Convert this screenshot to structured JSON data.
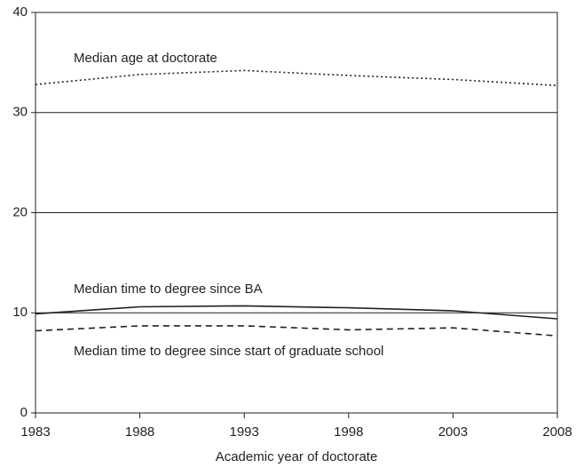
{
  "chart_data": {
    "type": "line",
    "x_label": "Academic year of doctorate",
    "x": [
      1983,
      1988,
      1993,
      1998,
      2003,
      2008
    ],
    "xlim": [
      1983,
      2008
    ],
    "xticks": [
      1983,
      1988,
      1993,
      1998,
      2003,
      2008
    ],
    "ylim": [
      0,
      40
    ],
    "yticks": [
      0,
      10,
      20,
      30,
      40
    ],
    "grid": true,
    "series": [
      {
        "name": "Median age at doctorate",
        "color": "#231f20",
        "style": "dotted",
        "values": [
          32.8,
          33.8,
          34.2,
          33.7,
          33.3,
          32.7
        ]
      },
      {
        "name": "Median time to degree since BA",
        "color": "#231f20",
        "style": "solid",
        "values": [
          9.9,
          10.6,
          10.7,
          10.5,
          10.2,
          9.4
        ]
      },
      {
        "name": "Median time to degree since start of graduate school",
        "color": "#231f20",
        "style": "dashed",
        "values": [
          8.2,
          8.7,
          8.7,
          8.3,
          8.5,
          7.7
        ]
      }
    ]
  }
}
